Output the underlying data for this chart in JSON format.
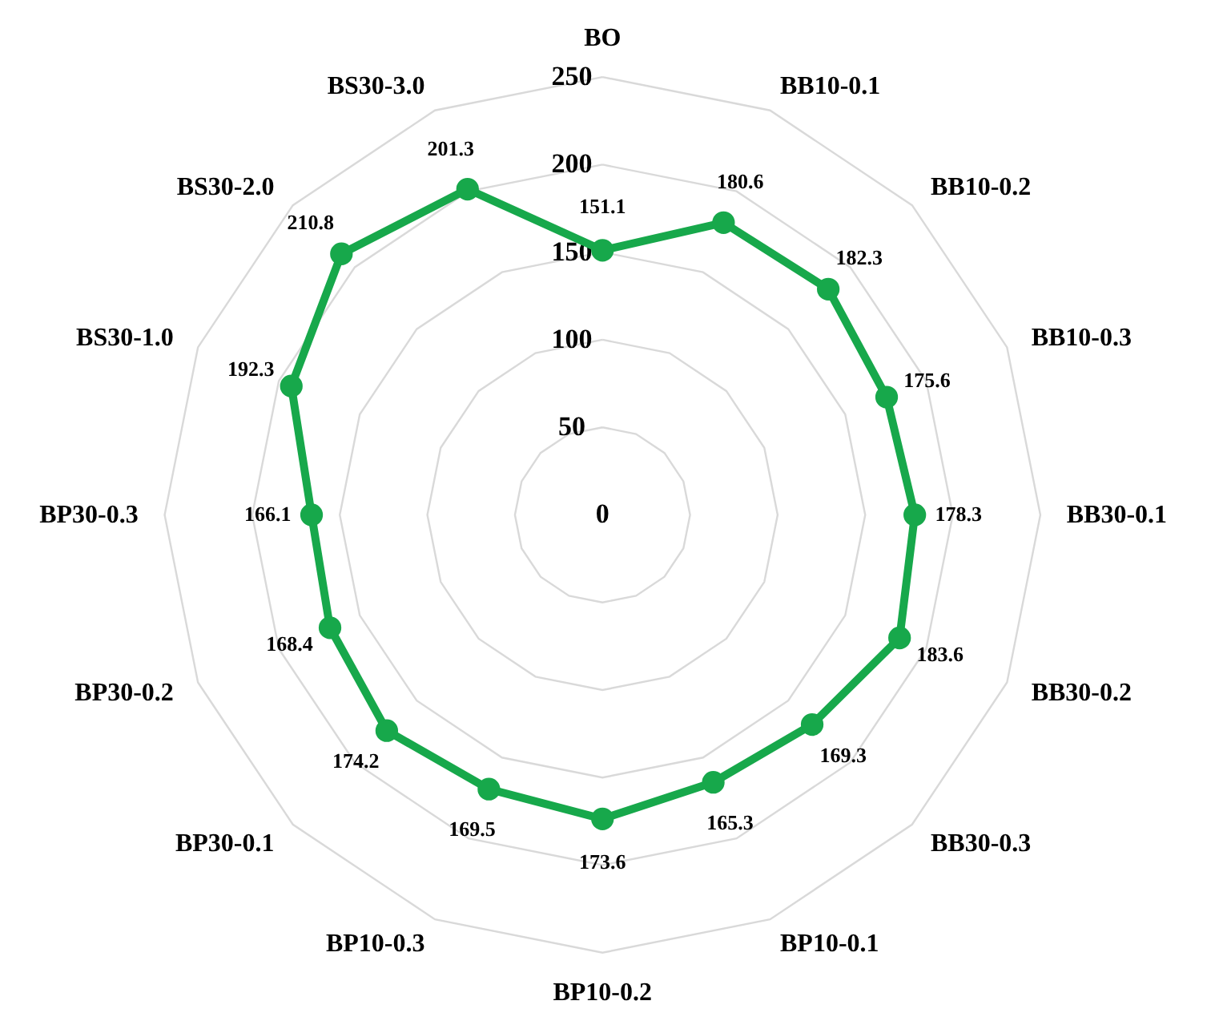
{
  "chart_data": {
    "type": "radar",
    "categories": [
      "BO",
      "BB10-0.1",
      "BB10-0.2",
      "BB10-0.3",
      "BB30-0.1",
      "BB30-0.2",
      "BB30-0.3",
      "BP10-0.1",
      "BP10-0.2",
      "BP10-0.3",
      "BP30-0.1",
      "BP30-0.2",
      "BP30-0.3",
      "BS30-1.0",
      "BS30-2.0",
      "BS30-3.0"
    ],
    "series": [
      {
        "color": "#17a84b",
        "values": [
          151.1,
          180.6,
          182.3,
          175.6,
          178.3,
          183.6,
          169.3,
          165.3,
          173.6,
          169.5,
          174.2,
          168.4,
          166.1,
          192.3,
          210.8,
          201.3
        ]
      }
    ],
    "ylim": [
      0,
      250
    ],
    "yticks": [
      0,
      50,
      100,
      150,
      200,
      250
    ],
    "grid": true,
    "marker": "circle",
    "line_style": "solid",
    "data_labels": true
  }
}
